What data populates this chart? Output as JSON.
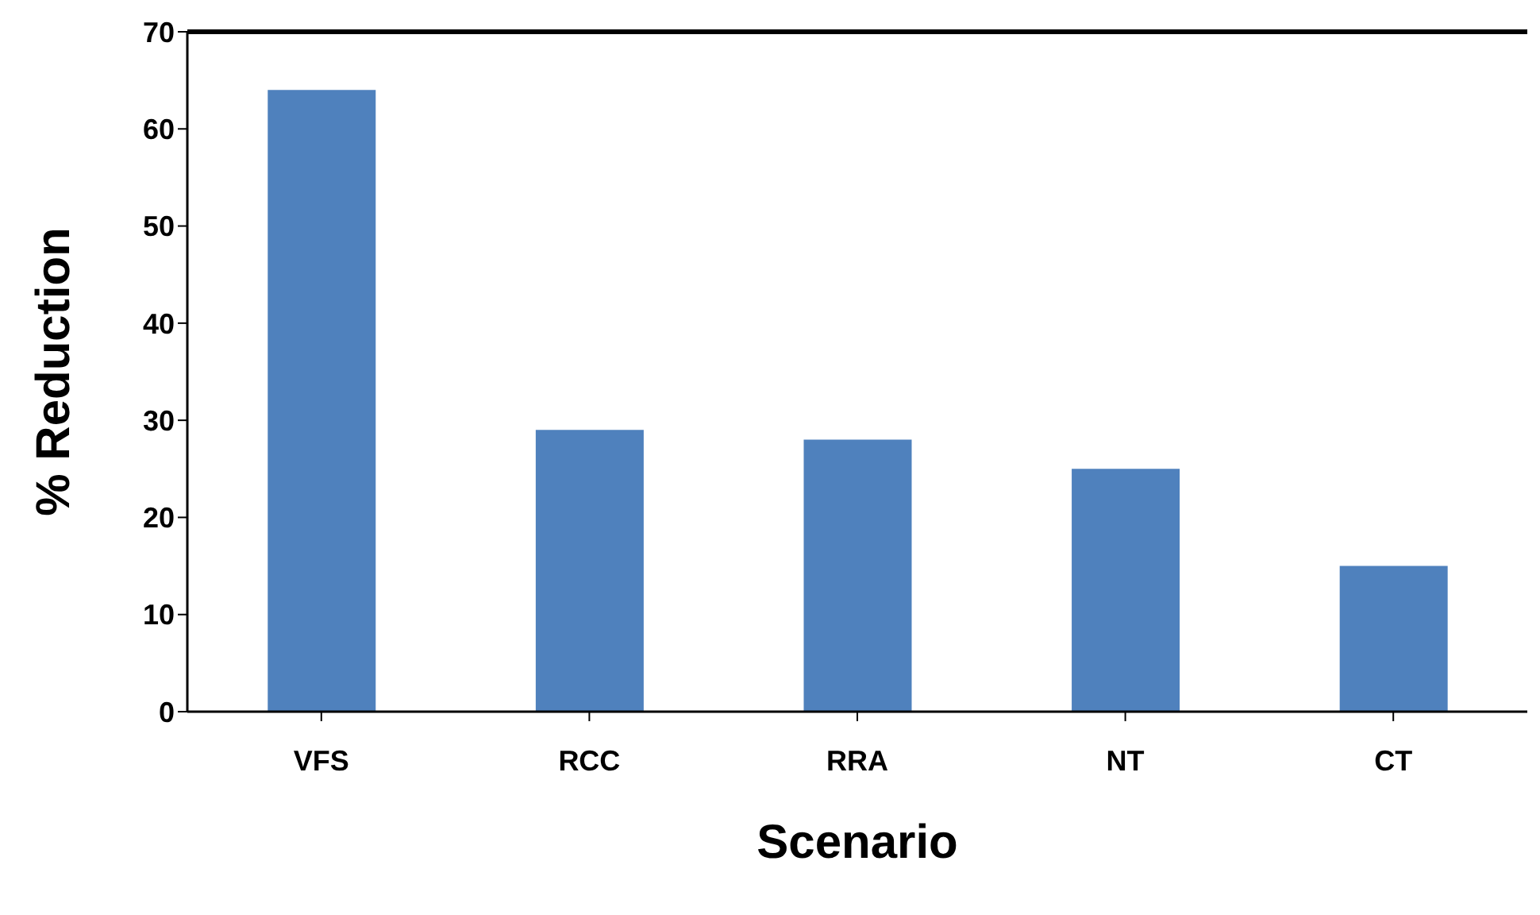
{
  "chart_data": {
    "type": "bar",
    "xlabel": "Scenario",
    "ylabel": "% Reduction",
    "categories": [
      "VFS",
      "RCC",
      "RRA",
      "NT",
      "CT"
    ],
    "values": [
      64,
      29,
      28,
      25,
      15
    ],
    "color": "#4f81bd",
    "ylim": [
      0,
      70
    ],
    "yticks": [
      0,
      10,
      20,
      30,
      40,
      50,
      60,
      70
    ],
    "grid": false,
    "legend": false
  }
}
